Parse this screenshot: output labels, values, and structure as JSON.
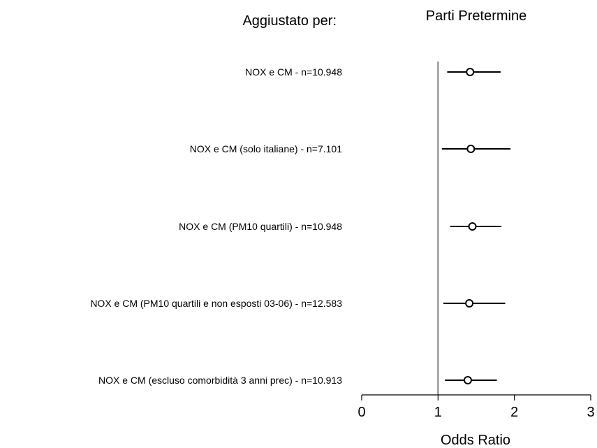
{
  "chart_data": {
    "type": "scatter",
    "subtype": "forest-plot",
    "left_heading": "Aggiustato per:",
    "title": "Parti Pretermine",
    "xlabel": "Odds Ratio",
    "xlim": [
      0,
      3
    ],
    "xticks": [
      "0",
      "1",
      "2",
      "3"
    ],
    "reference_line": 1,
    "grid": false,
    "rows": [
      {
        "label": "NOX e CM - n=10.948",
        "or": 1.42,
        "ci_low": 1.12,
        "ci_high": 1.82
      },
      {
        "label": "NOX e CM (solo italiane) - n=7.101",
        "or": 1.43,
        "ci_low": 1.05,
        "ci_high": 1.95
      },
      {
        "label": "NOX e CM (PM10 quartili) - n=10.948",
        "or": 1.45,
        "ci_low": 1.16,
        "ci_high": 1.83
      },
      {
        "label": "NOX e CM (PM10 quartili e non esposti 03-06) - n=12.583",
        "or": 1.41,
        "ci_low": 1.07,
        "ci_high": 1.88
      },
      {
        "label": "NOX e CM (escluso comorbidità 3 anni prec) - n=10.913",
        "or": 1.39,
        "ci_low": 1.09,
        "ci_high": 1.77
      }
    ],
    "colors": {
      "marker_fill": "#ffffff",
      "marker_stroke": "#000000",
      "reference_line": "#808080",
      "axis": "#000000"
    }
  }
}
